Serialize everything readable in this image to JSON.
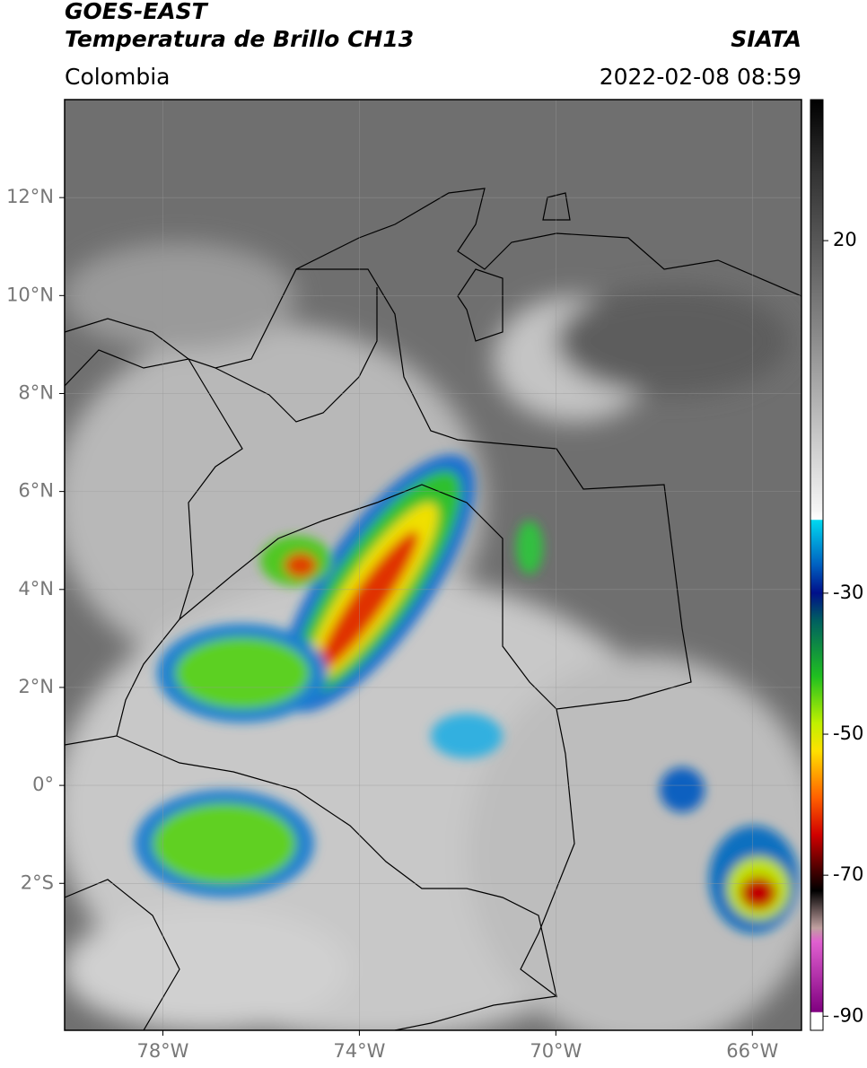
{
  "header": {
    "title": "GOES-EAST",
    "subtitle": "Temperatura de Brillo CH13",
    "source": "SIATA",
    "region": "Colombia",
    "datetime": "2022-02-08 08:59"
  },
  "map": {
    "xlim": [
      -80,
      -65
    ],
    "ylim": [
      -5,
      14
    ],
    "xticks": [
      {
        "value": -78,
        "label": "78°W"
      },
      {
        "value": -74,
        "label": "74°W"
      },
      {
        "value": -70,
        "label": "70°W"
      },
      {
        "value": -66,
        "label": "66°W"
      }
    ],
    "yticks": [
      {
        "value": 12,
        "label": "12°N"
      },
      {
        "value": 10,
        "label": "10°N"
      },
      {
        "value": 8,
        "label": "8°N"
      },
      {
        "value": 6,
        "label": "6°N"
      },
      {
        "value": 4,
        "label": "4°N"
      },
      {
        "value": 2,
        "label": "2°N"
      },
      {
        "value": 0,
        "label": "0°"
      },
      {
        "value": -2,
        "label": "2°S"
      }
    ],
    "grid": true
  },
  "colorbar": {
    "lim": [
      -92,
      40
    ],
    "ticks": [
      20,
      -30,
      -50,
      -70,
      -90
    ]
  }
}
